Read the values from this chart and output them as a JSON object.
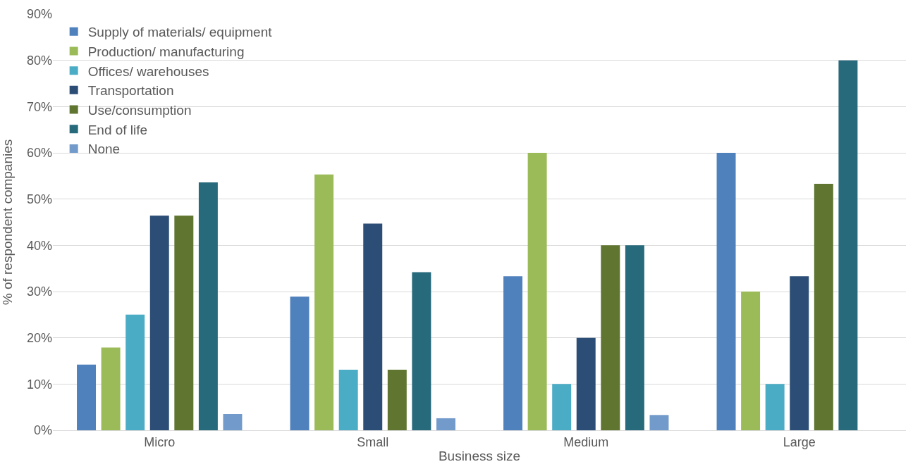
{
  "chart_data": {
    "type": "bar",
    "xlabel": "Business size",
    "ylabel": "% of respondent companies",
    "categories": [
      "Micro",
      "Small",
      "Medium",
      "Large"
    ],
    "series": [
      {
        "name": "Supply of materials/ equipment",
        "color": "#4f81bd",
        "values": [
          14.2,
          28.9,
          33.3,
          60
        ]
      },
      {
        "name": "Production/ manufacturing",
        "color": "#9bbb59",
        "values": [
          17.9,
          55.3,
          60,
          30
        ]
      },
      {
        "name": "Offices/ warehouses",
        "color": "#4bacc6",
        "values": [
          25,
          13.1,
          10,
          10
        ]
      },
      {
        "name": "Transportation",
        "color": "#2c4d75",
        "values": [
          46.4,
          44.7,
          20,
          33.3
        ]
      },
      {
        "name": "Use/consumption",
        "color": "#5f7530",
        "values": [
          46.4,
          13.1,
          40,
          53.3
        ]
      },
      {
        "name": "End of life",
        "color": "#276a7c",
        "values": [
          53.6,
          34.2,
          40,
          80
        ]
      },
      {
        "name": "None",
        "color": "#729aca",
        "values": [
          3.5,
          2.6,
          3.3,
          0
        ]
      }
    ],
    "ylim": [
      0,
      90
    ],
    "yticks": [
      {
        "value": 0,
        "label": "0%"
      },
      {
        "value": 10,
        "label": "10%"
      },
      {
        "value": 20,
        "label": "20%"
      },
      {
        "value": 30,
        "label": "30%"
      },
      {
        "value": 40,
        "label": "40%"
      },
      {
        "value": 50,
        "label": "50%"
      },
      {
        "value": 60,
        "label": "60%"
      },
      {
        "value": 70,
        "label": "70%"
      },
      {
        "value": 80,
        "label": "80%"
      },
      {
        "value": 90,
        "label": "90%"
      }
    ],
    "grid": "y",
    "legend": "top left"
  }
}
